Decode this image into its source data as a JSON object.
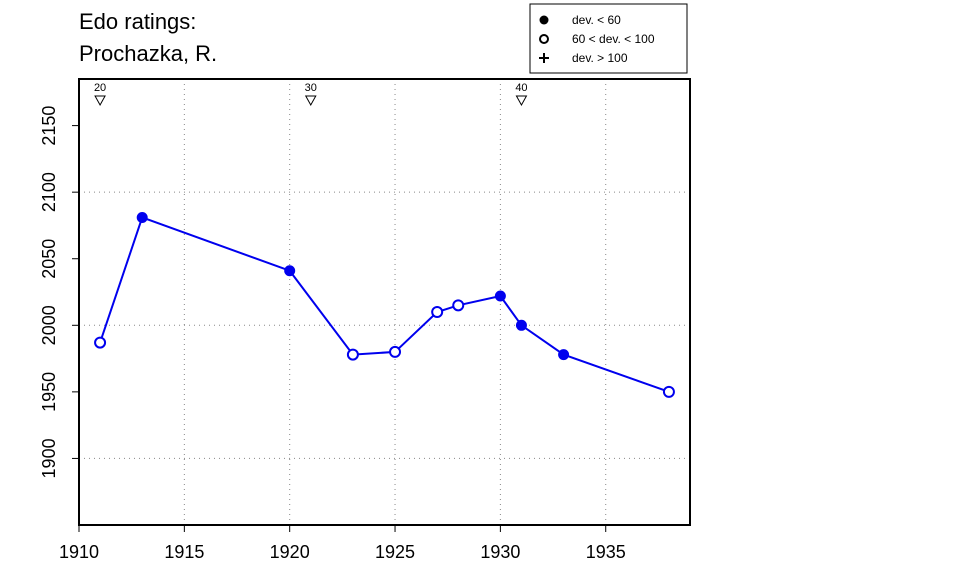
{
  "chart_data": {
    "type": "line",
    "title": [
      "Edo ratings:",
      "Prochazka, R."
    ],
    "xlim": [
      1910,
      1939
    ],
    "ylim": [
      1850,
      2185
    ],
    "x_ticks": [
      1910,
      1915,
      1920,
      1925,
      1930,
      1935
    ],
    "y_ticks": [
      1900,
      1950,
      2000,
      2050,
      2100,
      2150
    ],
    "x_grid": [
      1915,
      1920,
      1925,
      1930,
      1935
    ],
    "y_grid": [
      1900,
      2000,
      2100
    ],
    "grid": true,
    "line_color": "#0000ee",
    "legend": {
      "placement": "top-right",
      "entries": [
        {
          "symbol": "filled",
          "label": "dev. < 60"
        },
        {
          "symbol": "open",
          "label": "60 < dev. < 100"
        },
        {
          "symbol": "plus",
          "label": "dev. > 100"
        }
      ]
    },
    "age_markers": [
      {
        "year": 1911,
        "label": "20"
      },
      {
        "year": 1921,
        "label": "30"
      },
      {
        "year": 1931,
        "label": "40"
      }
    ],
    "series": [
      {
        "points": [
          {
            "x": 1911,
            "y": 1987,
            "marker": "open"
          },
          {
            "x": 1913,
            "y": 2081,
            "marker": "filled"
          },
          {
            "x": 1920,
            "y": 2041,
            "marker": "filled"
          },
          {
            "x": 1923,
            "y": 1978,
            "marker": "open"
          },
          {
            "x": 1925,
            "y": 1980,
            "marker": "open"
          },
          {
            "x": 1927,
            "y": 2010,
            "marker": "open"
          },
          {
            "x": 1928,
            "y": 2015,
            "marker": "open"
          },
          {
            "x": 1930,
            "y": 2022,
            "marker": "filled"
          },
          {
            "x": 1931,
            "y": 2000,
            "marker": "filled"
          },
          {
            "x": 1933,
            "y": 1978,
            "marker": "filled"
          },
          {
            "x": 1938,
            "y": 1950,
            "marker": "open"
          }
        ]
      }
    ]
  }
}
